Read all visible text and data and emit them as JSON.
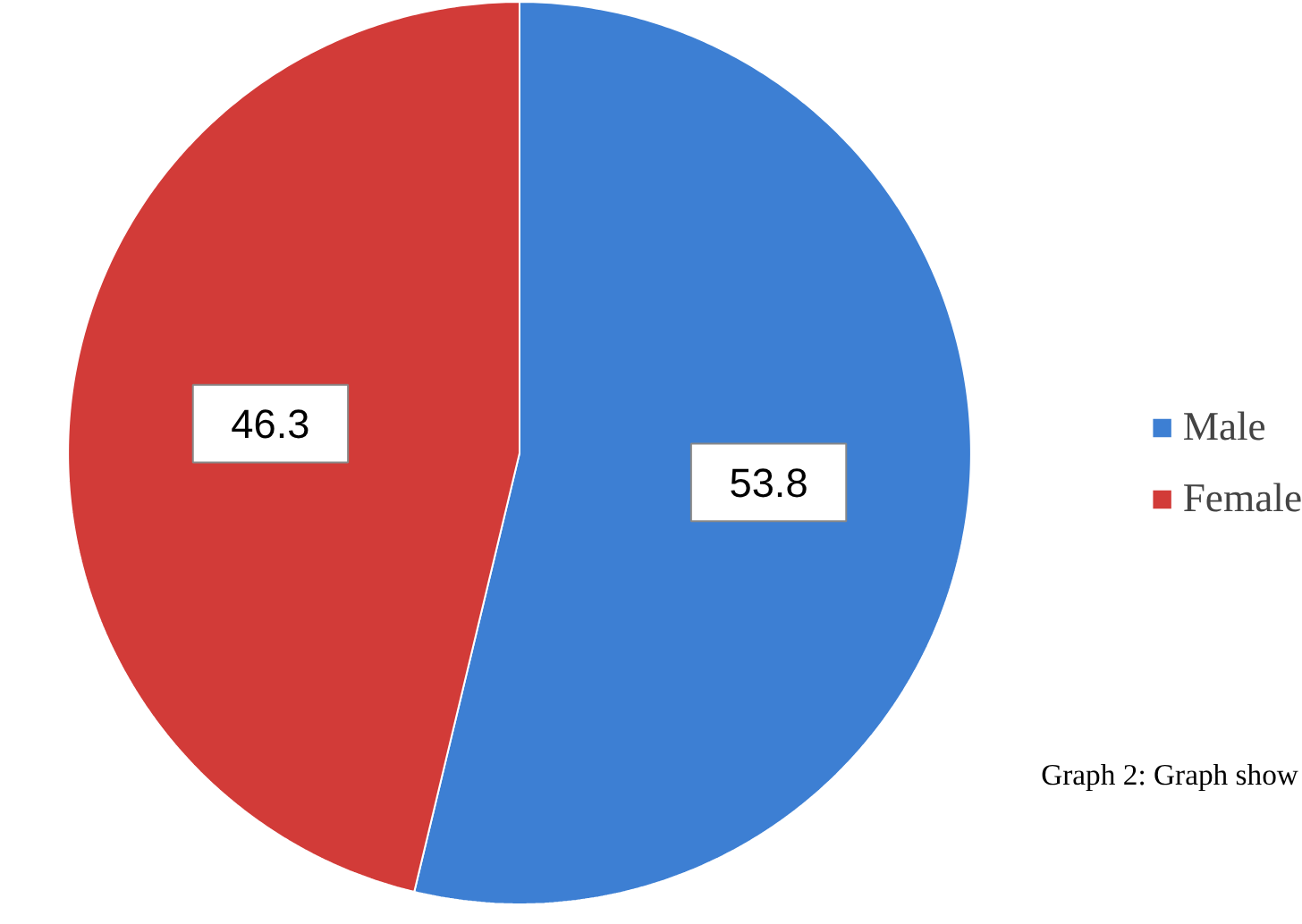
{
  "chart_data": {
    "type": "pie",
    "categories": [
      "Male",
      "Female"
    ],
    "values": [
      53.8,
      46.3
    ],
    "colors": [
      "#3d7fd3",
      "#d23b38"
    ],
    "data_labels": true,
    "legend": "right",
    "annotations": [
      "Graph 2: Graph show"
    ]
  }
}
